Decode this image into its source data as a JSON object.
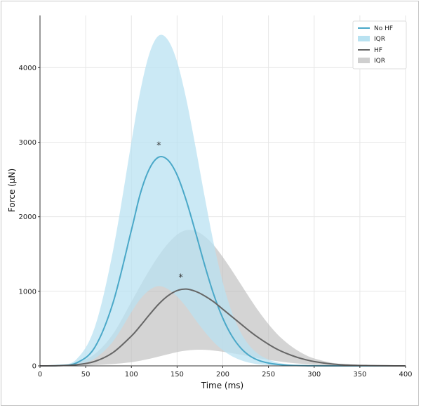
{
  "chart_data": {
    "type": "line",
    "xlabel": "Time (ms)",
    "ylabel": "Force (µN)",
    "xlim": [
      0,
      400
    ],
    "ylim": [
      0,
      4700
    ],
    "xticks": [
      0,
      50,
      100,
      150,
      200,
      250,
      300,
      350,
      400
    ],
    "yticks": [
      0,
      1000,
      2000,
      3000,
      4000
    ],
    "grid": true,
    "legend_position": "top-right",
    "legend": [
      {
        "label": "No HF",
        "kind": "line",
        "color": "#4aa8c8"
      },
      {
        "label": "IQR",
        "kind": "band",
        "color": "#b9e2f1"
      },
      {
        "label": "HF",
        "kind": "line",
        "color": "#666666"
      },
      {
        "label": "IQR",
        "kind": "band",
        "color": "#cfcfcf"
      }
    ],
    "series": [
      {
        "name": "No HF",
        "color": "#4aa8c8",
        "x": [
          0,
          20,
          40,
          60,
          80,
          100,
          110,
          120,
          130,
          140,
          150,
          160,
          170,
          180,
          190,
          200,
          210,
          220,
          230,
          240,
          250,
          260,
          270,
          280,
          290,
          300,
          320,
          340,
          360,
          380,
          400
        ],
        "y": [
          0,
          5,
          40,
          250,
          850,
          1820,
          2320,
          2650,
          2800,
          2760,
          2560,
          2220,
          1800,
          1360,
          960,
          640,
          400,
          235,
          130,
          70,
          38,
          20,
          10,
          5,
          2,
          1,
          0,
          0,
          0,
          0,
          0
        ],
        "iqr_upper": [
          0,
          10,
          90,
          520,
          1550,
          3000,
          3700,
          4200,
          4430,
          4370,
          4080,
          3580,
          2950,
          2280,
          1650,
          1120,
          720,
          440,
          260,
          150,
          85,
          45,
          22,
          10,
          5,
          2,
          0,
          0,
          0,
          0,
          0
        ],
        "iqr_lower": [
          0,
          2,
          15,
          100,
          330,
          720,
          900,
          1020,
          1070,
          1030,
          930,
          790,
          620,
          460,
          320,
          210,
          130,
          75,
          40,
          20,
          10,
          5,
          2,
          1,
          0,
          0,
          0,
          0,
          0,
          0,
          0
        ]
      },
      {
        "name": "HF",
        "color": "#666666",
        "x": [
          0,
          20,
          40,
          60,
          80,
          100,
          110,
          120,
          130,
          140,
          150,
          160,
          170,
          180,
          190,
          200,
          210,
          220,
          230,
          240,
          250,
          260,
          270,
          280,
          290,
          300,
          320,
          340,
          360,
          380,
          400
        ],
        "y": [
          0,
          2,
          15,
          60,
          180,
          400,
          540,
          690,
          830,
          940,
          1010,
          1030,
          1000,
          940,
          860,
          760,
          660,
          560,
          460,
          370,
          290,
          220,
          165,
          120,
          85,
          58,
          25,
          10,
          4,
          1,
          0
        ],
        "iqr_upper": [
          0,
          5,
          40,
          160,
          430,
          860,
          1080,
          1290,
          1480,
          1640,
          1760,
          1820,
          1810,
          1740,
          1620,
          1460,
          1280,
          1090,
          900,
          720,
          560,
          420,
          310,
          220,
          150,
          100,
          40,
          15,
          5,
          2,
          0
        ],
        "iqr_lower": [
          0,
          1,
          3,
          10,
          25,
          50,
          70,
          95,
          125,
          155,
          185,
          205,
          215,
          215,
          205,
          190,
          170,
          150,
          125,
          100,
          80,
          62,
          46,
          34,
          24,
          16,
          7,
          3,
          1,
          0,
          0
        ]
      }
    ],
    "annotations": [
      {
        "text": "*",
        "x": 130,
        "y": 2970
      },
      {
        "text": "*",
        "x": 154,
        "y": 1200
      }
    ]
  }
}
